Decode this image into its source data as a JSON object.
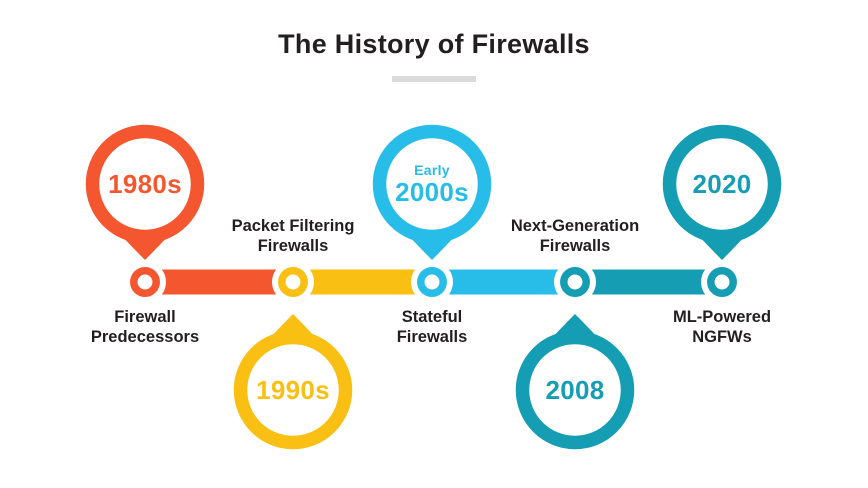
{
  "title": {
    "text": "The History of Firewalls"
  },
  "colors": {
    "background": "#FFFFFF",
    "text": "#231F20",
    "title_underline": "#DBDBDB",
    "orange": "#F4572F",
    "yellow": "#F9C013",
    "cyan": "#27BDE8",
    "teal": "#149DB3"
  },
  "timeline": {
    "nodes": [
      {
        "id": "firewall-predecessors",
        "era": "1980s",
        "era_kicker": "",
        "label_line1": "Firewall",
        "label_line2": "Predecessors",
        "color": "#F4572F",
        "balloon_position": "above"
      },
      {
        "id": "packet-filtering-firewalls",
        "era": "1990s",
        "era_kicker": "",
        "label_line1": "Packet Filtering",
        "label_line2": "Firewalls",
        "color": "#F9C013",
        "balloon_position": "below"
      },
      {
        "id": "stateful-firewalls",
        "era": "2000s",
        "era_kicker": "Early",
        "label_line1": "Stateful",
        "label_line2": "Firewalls",
        "color": "#27BDE8",
        "balloon_position": "above"
      },
      {
        "id": "next-generation-firewalls",
        "era": "2008",
        "era_kicker": "",
        "label_line1": "Next-Generation",
        "label_line2": "Firewalls",
        "color": "#149DB3",
        "balloon_position": "below"
      },
      {
        "id": "ml-powered-ngfws",
        "era": "2020",
        "era_kicker": "",
        "label_line1": "ML-Powered",
        "label_line2": "NGFWs",
        "color": "#149DB3",
        "balloon_position": "above"
      }
    ],
    "segments": [
      {
        "from": "firewall-predecessors",
        "to": "packet-filtering-firewalls",
        "color": "#F4572F"
      },
      {
        "from": "packet-filtering-firewalls",
        "to": "stateful-firewalls",
        "color": "#F9C013"
      },
      {
        "from": "stateful-firewalls",
        "to": "next-generation-firewalls",
        "color": "#27BDE8"
      },
      {
        "from": "next-generation-firewalls",
        "to": "ml-powered-ngfws",
        "color": "#149DB3"
      }
    ]
  }
}
